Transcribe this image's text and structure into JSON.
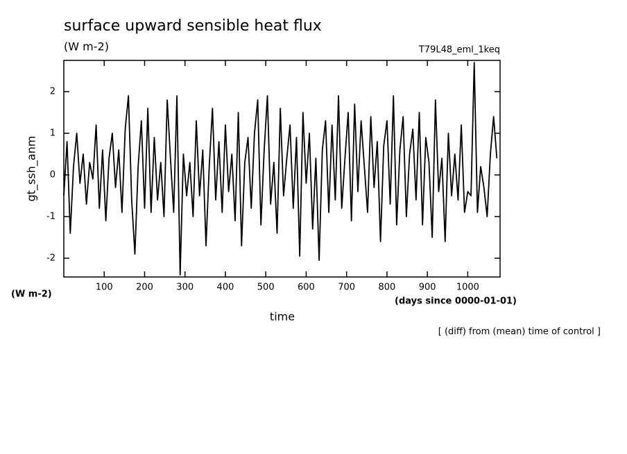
{
  "chart_data": {
    "type": "line",
    "title": "surface upward sensible heat flux",
    "subtitle": "(W m-2)",
    "run_label": "T79L48_eml_1keq",
    "y_label": "gt_ssh_anm",
    "y_unit": "(W m-2)",
    "x_unit": "(days since 0000-01-01)",
    "x_label": "time",
    "note": "[ (diff) from (mean) time of control ]",
    "x": [
      0,
      8,
      16,
      24,
      32,
      40,
      48,
      56,
      64,
      72,
      80,
      88,
      96,
      104,
      112,
      120,
      128,
      136,
      144,
      152,
      160,
      168,
      176,
      184,
      192,
      200,
      208,
      216,
      224,
      232,
      240,
      248,
      256,
      264,
      272,
      280,
      288,
      296,
      304,
      312,
      320,
      328,
      336,
      344,
      352,
      360,
      368,
      376,
      384,
      392,
      400,
      408,
      416,
      424,
      432,
      440,
      448,
      456,
      464,
      472,
      480,
      488,
      496,
      504,
      512,
      520,
      528,
      536,
      544,
      552,
      560,
      568,
      576,
      584,
      592,
      600,
      608,
      616,
      624,
      632,
      640,
      648,
      656,
      664,
      672,
      680,
      688,
      696,
      704,
      712,
      720,
      728,
      736,
      744,
      752,
      760,
      768,
      776,
      784,
      792,
      800,
      808,
      816,
      824,
      832,
      840,
      848,
      856,
      864,
      872,
      880,
      888,
      896,
      904,
      912,
      920,
      928,
      936,
      944,
      952,
      960,
      968,
      976,
      984,
      992,
      1000,
      1008,
      1016,
      1024,
      1032,
      1040,
      1048,
      1056,
      1064,
      1072
    ],
    "series": [
      {
        "name": "gt_ssh_anm",
        "color": "#000000",
        "values": [
          -0.5,
          0.8,
          -1.4,
          0.2,
          1.0,
          -0.2,
          0.5,
          -0.7,
          0.3,
          -0.1,
          1.2,
          -0.8,
          0.6,
          -1.1,
          0.4,
          1.0,
          -0.3,
          0.6,
          -0.9,
          1.1,
          1.9,
          -0.6,
          -1.9,
          0.2,
          1.3,
          -0.8,
          1.6,
          -0.9,
          0.9,
          -0.6,
          0.3,
          -1.0,
          1.8,
          0.4,
          -0.9,
          1.9,
          -2.4,
          0.5,
          -0.5,
          0.3,
          -1.0,
          1.3,
          -0.5,
          0.6,
          -1.7,
          0.2,
          1.6,
          -0.6,
          0.8,
          -0.9,
          1.2,
          -0.4,
          0.5,
          -1.1,
          1.5,
          -1.7,
          0.3,
          0.9,
          -0.8,
          1.0,
          1.8,
          -1.2,
          0.6,
          1.9,
          -0.7,
          0.3,
          -1.4,
          1.6,
          -0.5,
          0.4,
          1.2,
          -0.8,
          0.9,
          -1.95,
          1.5,
          -0.2,
          1.0,
          -1.3,
          0.4,
          -2.05,
          0.6,
          1.3,
          -0.9,
          1.2,
          -0.6,
          1.9,
          -0.8,
          0.4,
          1.5,
          -1.1,
          1.7,
          -0.4,
          1.3,
          0.2,
          -0.9,
          1.4,
          -0.3,
          0.8,
          -1.6,
          0.7,
          1.3,
          -0.7,
          1.9,
          -1.2,
          0.6,
          1.4,
          -1.0,
          0.5,
          1.1,
          -0.6,
          1.5,
          -1.2,
          0.9,
          0.3,
          -1.5,
          1.8,
          -0.4,
          0.4,
          -1.6,
          1.0,
          -0.5,
          0.5,
          -0.6,
          1.2,
          -0.9,
          -0.4,
          -0.5,
          2.7,
          -0.9,
          0.2,
          -0.3,
          -1.0,
          0.5,
          1.4,
          0.4
        ]
      }
    ],
    "xlim": [
      0,
      1080
    ],
    "xticks": [
      100,
      200,
      300,
      400,
      500,
      600,
      700,
      800,
      900,
      1000
    ],
    "ylim": [
      -2.45,
      2.75
    ],
    "yticks": [
      -2,
      -1,
      0,
      1,
      2
    ]
  }
}
